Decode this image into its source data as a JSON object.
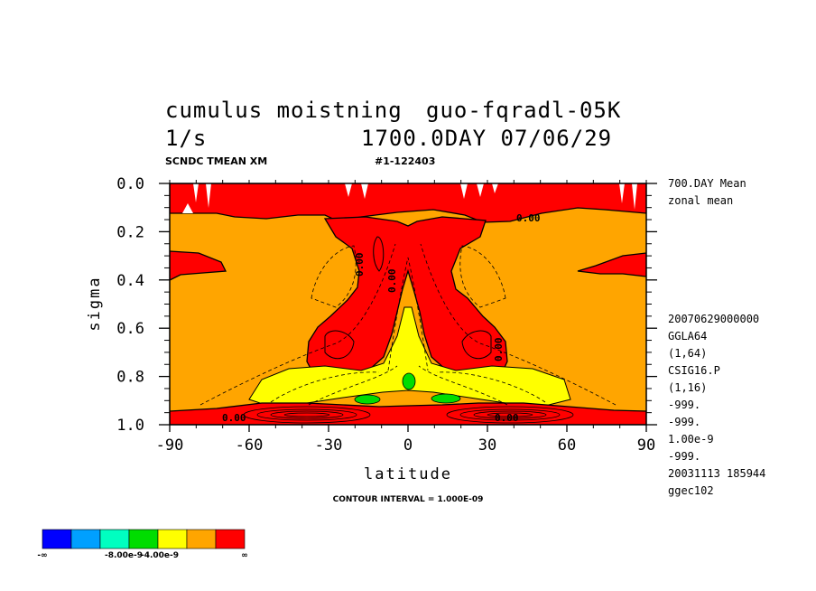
{
  "header": {
    "title_left_1": "cumulus moistning",
    "title_right_1": "guo-fqradl-05K",
    "title_left_2": "1/s",
    "title_right_2": "1700.0DAY 07/06/29",
    "sub_left": "SCNDC TMEAN XM",
    "sub_right": "#1-122403"
  },
  "side_info": {
    "top_lines": [
      "700.DAY Mean",
      "zonal mean"
    ],
    "bottom_lines": [
      "20070629000000",
      "GGLA64",
      "(1,64)",
      "CSIG16.P",
      "(1,16)",
      "-999.",
      "-999.",
      "1.00e-9",
      "-999.",
      "20031113 185944",
      "ggec102"
    ]
  },
  "contour_interval": "CONTOUR INTERVAL = 1.000E-09",
  "contour_labels": [
    "0.00",
    "0.00",
    "0.00",
    "0.00",
    "0.00",
    "0.00"
  ],
  "chart_data": {
    "type": "heatmap",
    "title": "cumulus moistning",
    "xlabel": "latitude",
    "ylabel": "sigma",
    "xlim": [
      -90,
      90
    ],
    "ylim": [
      1.0,
      0.0
    ],
    "x_ticks": [
      -90,
      -60,
      -30,
      0,
      30,
      60,
      90
    ],
    "x_tick_labels": [
      "-90",
      "-60",
      "-30",
      "0",
      "30",
      "60",
      "90"
    ],
    "y_ticks": [
      0.0,
      0.2,
      0.4,
      0.6,
      0.8,
      1.0
    ],
    "y_tick_labels": [
      "0.0",
      "0.2",
      "0.4",
      "0.6",
      "0.8",
      "1.0"
    ],
    "contour_interval": 1e-09,
    "regions": [
      {
        "level": "> 0 (red)",
        "lat": [
          -28,
          28
        ],
        "sigma": [
          0.08,
          0.82
        ],
        "shape": "twin plumes rising from ~±25 lat to the top near ±10 lat"
      },
      {
        "level": "> 0 (red)",
        "lat": [
          -90,
          90
        ],
        "sigma": [
          0.02,
          0.13
        ],
        "shape": "upper layer band"
      },
      {
        "level": "> 0 (red)",
        "lat": [
          -90,
          90
        ],
        "sigma": [
          0.93,
          1.0
        ],
        "shape": "surface layer band"
      },
      {
        "level": "-4e-9 to 0 (yellow)",
        "lat": [
          -65,
          65
        ],
        "sigma": [
          0.5,
          0.92
        ],
        "shape": "lower troposphere wedge"
      },
      {
        "level": "-6e-9 to -4e-9 (green)",
        "lat": [
          -2,
          2
        ],
        "sigma": [
          0.77,
          0.82
        ]
      },
      {
        "level": "-6e-9 to -4e-9 (green)",
        "lat": [
          -20,
          -10
        ],
        "sigma": [
          0.87,
          0.9
        ]
      },
      {
        "level": "-6e-9 to -4e-9 (green)",
        "lat": [
          10,
          22
        ],
        "sigma": [
          0.87,
          0.9
        ]
      }
    ],
    "colorbar": {
      "colors": [
        "#0000ff",
        "#00a0ff",
        "#00ffc0",
        "#00dd00",
        "#ffff00",
        "#ffa500",
        "#ff0000"
      ],
      "labels": [
        "-∞",
        "-8.00e-9",
        "-4.00e-9",
        "∞"
      ]
    }
  }
}
